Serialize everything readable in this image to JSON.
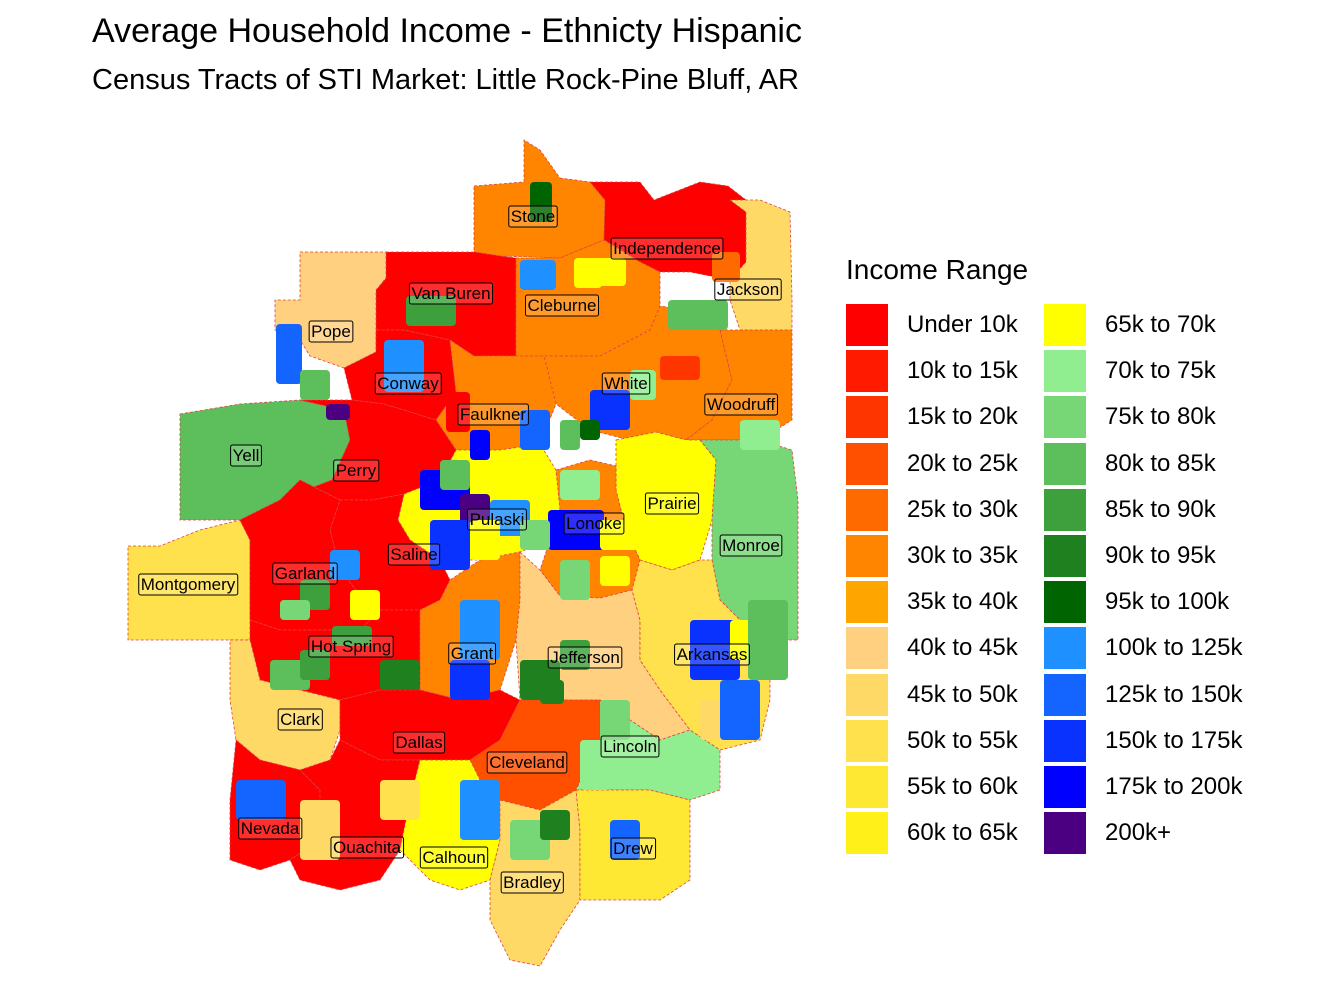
{
  "title": "Average Household Income - Ethnicty Hispanic",
  "subtitle": "Census Tracts of STI Market: Little Rock-Pine Bluff, AR",
  "legend": {
    "title": "Income Range",
    "items": [
      {
        "label": "Under 10k",
        "color": "#FF0000"
      },
      {
        "label": "10k to 15k",
        "color": "#FF1A00"
      },
      {
        "label": "15k to 20k",
        "color": "#FF3500"
      },
      {
        "label": "20k to 25k",
        "color": "#FF5000"
      },
      {
        "label": "25k to 30k",
        "color": "#FF6A00"
      },
      {
        "label": "30k to 35k",
        "color": "#FF8500"
      },
      {
        "label": "35k to 40k",
        "color": "#FFA500"
      },
      {
        "label": "40k to 45k",
        "color": "#FFD080"
      },
      {
        "label": "45k to 50k",
        "color": "#FFD966"
      },
      {
        "label": "50k to 55k",
        "color": "#FFE14D"
      },
      {
        "label": "55k to 60k",
        "color": "#FFE833"
      },
      {
        "label": "60k to 65k",
        "color": "#FFF01A"
      },
      {
        "label": "65k to 70k",
        "color": "#FFFF00"
      },
      {
        "label": "70k to 75k",
        "color": "#90EE90"
      },
      {
        "label": "75k to 80k",
        "color": "#77D777"
      },
      {
        "label": "80k to 85k",
        "color": "#5CBF5C"
      },
      {
        "label": "85k to 90k",
        "color": "#3DA03D"
      },
      {
        "label": "90k to 95k",
        "color": "#1F801F"
      },
      {
        "label": "95k to 100k",
        "color": "#006400"
      },
      {
        "label": "100k to 125k",
        "color": "#1E90FF"
      },
      {
        "label": "125k to 150k",
        "color": "#1464FF"
      },
      {
        "label": "150k to 175k",
        "color": "#0A32FF"
      },
      {
        "label": "175k to 200k",
        "color": "#0000FF"
      },
      {
        "label": "200k+",
        "color": "#4B0082"
      }
    ]
  },
  "counties": [
    {
      "name": "Stone",
      "color": "#FF8500"
    },
    {
      "name": "Independence",
      "color": "#FF0000"
    },
    {
      "name": "Van Buren",
      "color": "#FF0000"
    },
    {
      "name": "Cleburne",
      "color": "#FF8500"
    },
    {
      "name": "Jackson",
      "color": "#FFD966"
    },
    {
      "name": "Pope",
      "color": "#FFD080"
    },
    {
      "name": "Conway",
      "color": "#FF0000"
    },
    {
      "name": "White",
      "color": "#FF8500"
    },
    {
      "name": "Woodruff",
      "color": "#FF8500"
    },
    {
      "name": "Faulkner",
      "color": "#FF8500"
    },
    {
      "name": "Yell",
      "color": "#5CBF5C"
    },
    {
      "name": "Perry",
      "color": "#FF0000"
    },
    {
      "name": "Prairie",
      "color": "#FFFF00"
    },
    {
      "name": "Pulaski",
      "color": "#FFFF00"
    },
    {
      "name": "Lonoke",
      "color": "#FF8500"
    },
    {
      "name": "Monroe",
      "color": "#77D777"
    },
    {
      "name": "Saline",
      "color": "#FF0000"
    },
    {
      "name": "Montgomery",
      "color": "#FFE14D"
    },
    {
      "name": "Garland",
      "color": "#FF0000"
    },
    {
      "name": "Hot Spring",
      "color": "#FF0000"
    },
    {
      "name": "Grant",
      "color": "#FF8500"
    },
    {
      "name": "Jefferson",
      "color": "#FFD080"
    },
    {
      "name": "Arkansas",
      "color": "#FFE14D"
    },
    {
      "name": "Clark",
      "color": "#FFD966"
    },
    {
      "name": "Dallas",
      "color": "#FF0000"
    },
    {
      "name": "Cleveland",
      "color": "#FF5000"
    },
    {
      "name": "Lincoln",
      "color": "#90EE90"
    },
    {
      "name": "Nevada",
      "color": "#FF0000"
    },
    {
      "name": "Ouachita",
      "color": "#FF0000"
    },
    {
      "name": "Calhoun",
      "color": "#FFFF00"
    },
    {
      "name": "Bradley",
      "color": "#FFD966"
    },
    {
      "name": "Drew",
      "color": "#FFE833"
    }
  ]
}
